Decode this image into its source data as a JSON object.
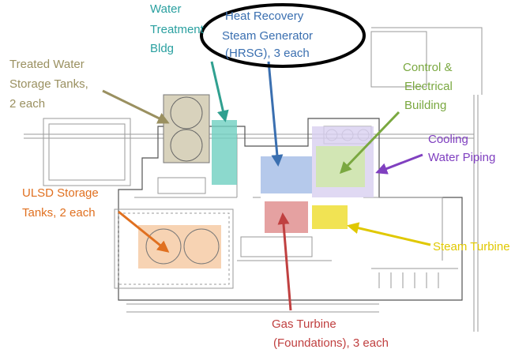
{
  "callouts": [
    {
      "lines": [
        "Water",
        "Treatment",
        "Bldg"
      ]
    },
    {
      "lines": [
        "Heat Recovery",
        "Steam Generator",
        "(HRSG), 3 each"
      ]
    },
    {
      "lines": [
        "Treated Water",
        "Storage Tanks,",
        "2 each"
      ]
    },
    {
      "lines": [
        "Control &",
        "Electrical",
        "Building"
      ]
    },
    {
      "lines": [
        "Cooling",
        "Water Piping"
      ]
    },
    {
      "lines": [
        "ULSD Storage",
        "Tanks, 2 each"
      ]
    },
    {
      "lines": [
        "Steam Turbine"
      ]
    },
    {
      "lines": [
        "Gas Turbine",
        "(Foundations), 3 each"
      ]
    }
  ]
}
